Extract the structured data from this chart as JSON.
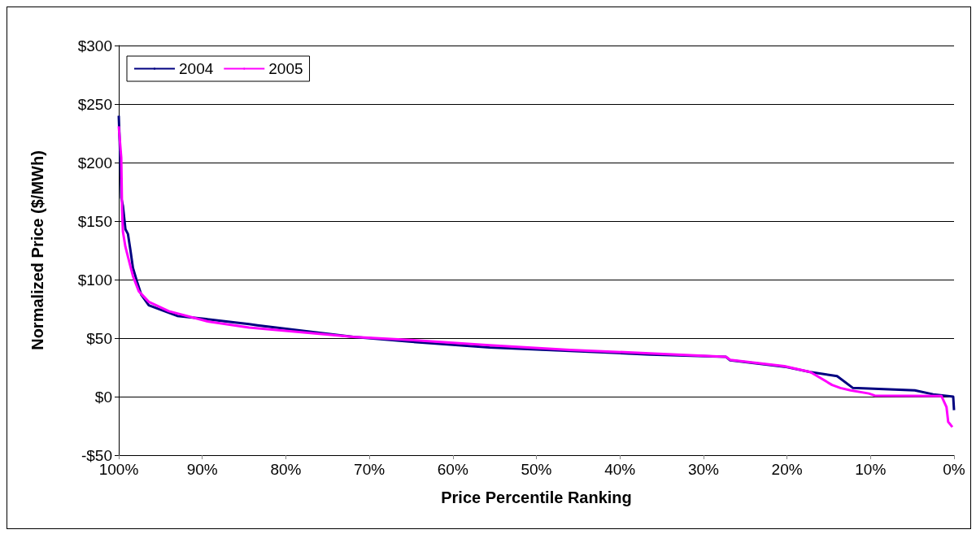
{
  "chart_data": {
    "type": "line",
    "xlabel": "Price Percentile Ranking",
    "ylabel": "Normalized Price ($/MWh)",
    "xlim": [
      100,
      0
    ],
    "xticks": [
      {
        "value": 100,
        "label": "100%"
      },
      {
        "value": 90,
        "label": "90%"
      },
      {
        "value": 80,
        "label": "80%"
      },
      {
        "value": 70,
        "label": "70%"
      },
      {
        "value": 60,
        "label": "60%"
      },
      {
        "value": 50,
        "label": "50%"
      },
      {
        "value": 40,
        "label": "40%"
      },
      {
        "value": 30,
        "label": "30%"
      },
      {
        "value": 20,
        "label": "20%"
      },
      {
        "value": 10,
        "label": "10%"
      },
      {
        "value": 0,
        "label": "0%"
      }
    ],
    "ylim": [
      -50,
      300
    ],
    "yticks": [
      {
        "value": -50,
        "label": "-$50"
      },
      {
        "value": 0,
        "label": "$0"
      },
      {
        "value": 50,
        "label": "$50"
      },
      {
        "value": 100,
        "label": "$100"
      },
      {
        "value": 150,
        "label": "$150"
      },
      {
        "value": 200,
        "label": "$200"
      },
      {
        "value": 250,
        "label": "$250"
      },
      {
        "value": 300,
        "label": "$300"
      }
    ],
    "grid": "y",
    "legend": "top left",
    "marker": "none",
    "line_style": "solid",
    "series": [
      {
        "name": "2004",
        "color": "#000080",
        "x": [
          100,
          99.8,
          99.7,
          99.5,
          99.2,
          98.9,
          98.6,
          98.3,
          97.8,
          97.3,
          96.4,
          94.9,
          93.0,
          89.2,
          84.4,
          83.4,
          71.9,
          65.2,
          55.6,
          46.0,
          36.4,
          27.3,
          26.8,
          20.3,
          17.2,
          14.0,
          12.1,
          4.7,
          2.5,
          0.1,
          0
        ],
        "values": [
          240,
          200,
          170,
          163,
          143,
          139,
          125,
          110,
          98,
          87,
          78,
          74,
          69,
          66,
          62,
          61,
          51,
          47,
          42,
          39,
          36,
          34,
          31,
          25.6,
          21,
          17.5,
          7.4,
          5.4,
          2,
          0,
          -11.5
        ]
      },
      {
        "name": "2005",
        "color": "#ff00ff",
        "x": [
          100,
          99.7,
          99.6,
          99.5,
          99.2,
          98.7,
          98.3,
          97.6,
          96.4,
          94.0,
          89.2,
          84.4,
          71.9,
          65.2,
          55.6,
          46.0,
          36.4,
          27.3,
          26.8,
          20.3,
          17.2,
          14.6,
          13.6,
          12.4,
          10.2,
          9.5,
          1.5,
          0.9,
          0.7,
          0.2
        ],
        "values": [
          231,
          204,
          159,
          141,
          128,
          114,
          103,
          90,
          81,
          73,
          64,
          59,
          51,
          48.5,
          44,
          40,
          37,
          34,
          31.5,
          26,
          21,
          10,
          7.4,
          5.4,
          2.7,
          0.9,
          0.5,
          -9,
          -21.5,
          -26
        ]
      }
    ]
  }
}
